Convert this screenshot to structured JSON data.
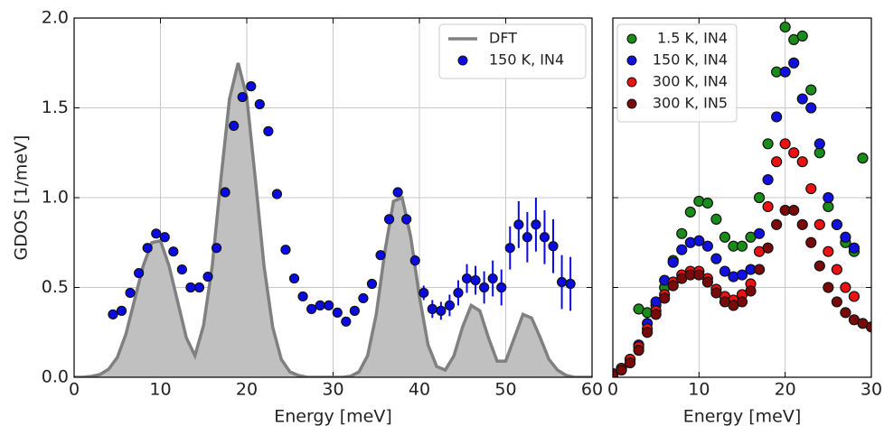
{
  "chart_data": [
    {
      "type": "scatter",
      "xlabel": "Energy [meV]",
      "ylabel": "GDOS [1/meV]",
      "xlim": [
        0,
        60
      ],
      "xticks": [
        0,
        10,
        20,
        30,
        40,
        50,
        60
      ],
      "ylim": [
        0,
        2.0
      ],
      "yticks": [
        {
          "value": 0,
          "label": "0.0"
        },
        0.5,
        {
          "value": 1,
          "label": "1.0"
        },
        1.5,
        {
          "value": 2,
          "label": "2.0"
        }
      ],
      "grid": true,
      "legend": "upper right",
      "series": [
        {
          "name": "DFT",
          "type": "line",
          "fill": true,
          "color": "#808080",
          "x": [
            0,
            1,
            2,
            3,
            4,
            5,
            6,
            7,
            8,
            9,
            10,
            11,
            12,
            13,
            14,
            15,
            16,
            17,
            18,
            19,
            20,
            21,
            22,
            23,
            24,
            25,
            26,
            27,
            28,
            29,
            30,
            31,
            32,
            33,
            34,
            35,
            36,
            37,
            38,
            39,
            40,
            41,
            42,
            43,
            44,
            45,
            46,
            47,
            48,
            49,
            50,
            51,
            52,
            53,
            54,
            55,
            56,
            57,
            58,
            59,
            60
          ],
          "values": [
            0,
            0,
            0.005,
            0.015,
            0.045,
            0.11,
            0.24,
            0.43,
            0.62,
            0.75,
            0.76,
            0.62,
            0.42,
            0.22,
            0.12,
            0.29,
            0.62,
            1.1,
            1.55,
            1.75,
            1.56,
            1.1,
            0.62,
            0.28,
            0.1,
            0.03,
            0.01,
            0,
            0,
            0,
            0,
            0,
            0.005,
            0.03,
            0.12,
            0.35,
            0.7,
            0.98,
            1.0,
            0.78,
            0.45,
            0.18,
            0.06,
            0.04,
            0.12,
            0.28,
            0.4,
            0.37,
            0.22,
            0.09,
            0.09,
            0.22,
            0.35,
            0.33,
            0.22,
            0.1,
            0.04,
            0.01,
            0,
            0,
            0
          ]
        },
        {
          "name": "150 K, IN4",
          "type": "scatter",
          "color": "#0a0ae6",
          "x": [
            4.5,
            5.5,
            6.5,
            7.5,
            8.5,
            9.5,
            10.5,
            11.5,
            12.5,
            13.5,
            14.5,
            15.5,
            16.5,
            17.5,
            18.5,
            19.5,
            20.5,
            21.5,
            22.5,
            23.5,
            24.5,
            25.5,
            26.5,
            27.5,
            28.5,
            29.5,
            30.5,
            31.5,
            32.5,
            33.5,
            34.5,
            35.5,
            36.5,
            37.5,
            38.5,
            39.5,
            40.5,
            41.5,
            42.5,
            43.5,
            44.5,
            45.5,
            46.5,
            47.5,
            48.5,
            49.5,
            50.5,
            51.5,
            52.5,
            53.5,
            54.5,
            55.5,
            56.5,
            57.5
          ],
          "values": [
            0.35,
            0.37,
            0.47,
            0.58,
            0.72,
            0.8,
            0.78,
            0.7,
            0.6,
            0.5,
            0.5,
            0.56,
            0.72,
            1.03,
            1.4,
            1.56,
            1.62,
            1.52,
            1.37,
            1.02,
            0.71,
            0.55,
            0.45,
            0.38,
            0.4,
            0.4,
            0.36,
            0.31,
            0.37,
            0.44,
            0.52,
            0.68,
            0.88,
            1.03,
            0.88,
            0.65,
            0.47,
            0.38,
            0.37,
            0.4,
            0.47,
            0.55,
            0.54,
            0.5,
            0.55,
            0.5,
            0.72,
            0.85,
            0.78,
            0.85,
            0.78,
            0.73,
            0.53,
            0.52
          ],
          "errors": [
            0.02,
            0.02,
            0.02,
            0.02,
            0.02,
            0.02,
            0.02,
            0.02,
            0.02,
            0.02,
            0.02,
            0.02,
            0.02,
            0.02,
            0.02,
            0.02,
            0.02,
            0.02,
            0.02,
            0.02,
            0.02,
            0.02,
            0.02,
            0.02,
            0.02,
            0.02,
            0.02,
            0.02,
            0.02,
            0.02,
            0.02,
            0.02,
            0.02,
            0.02,
            0.03,
            0.03,
            0.04,
            0.05,
            0.05,
            0.06,
            0.07,
            0.08,
            0.08,
            0.09,
            0.1,
            0.1,
            0.12,
            0.13,
            0.14,
            0.15,
            0.15,
            0.15,
            0.15,
            0.15
          ]
        }
      ]
    },
    {
      "type": "scatter",
      "xlabel": "Energy [meV]",
      "xlim": [
        0,
        30
      ],
      "xticks": [
        0,
        10,
        20,
        30
      ],
      "ylim": [
        0,
        2.0
      ],
      "yticks": [
        0,
        0.5,
        1,
        1.5,
        2
      ],
      "grid": true,
      "legend": "upper left",
      "series": [
        {
          "name": "1.5 K, IN4",
          "type": "scatter",
          "color": "#1a8c1a",
          "x": [
            3,
            4,
            5,
            6,
            7,
            8,
            9,
            10,
            11,
            12,
            13,
            14,
            15,
            16,
            17,
            18,
            19,
            20,
            21,
            22,
            23,
            24,
            25,
            26,
            27,
            28,
            29
          ],
          "values": [
            0.38,
            0.36,
            0.4,
            0.5,
            0.65,
            0.8,
            0.92,
            0.98,
            0.97,
            0.88,
            0.78,
            0.73,
            0.73,
            0.78,
            1.0,
            1.3,
            1.7,
            1.95,
            1.88,
            1.9,
            1.6,
            1.25,
            0.95,
            0.85,
            0.75,
            0.7,
            1.22
          ]
        },
        {
          "name": "150 K, IN4",
          "type": "scatter",
          "color": "#1010e0",
          "x": [
            0,
            1,
            2,
            3,
            4,
            5,
            6,
            7,
            8,
            9,
            10,
            11,
            12,
            13,
            14,
            15,
            16,
            17,
            18,
            19,
            20,
            21,
            22,
            23,
            24,
            25,
            26,
            27,
            28
          ],
          "values": [
            0.02,
            0.05,
            0.1,
            0.18,
            0.3,
            0.42,
            0.54,
            0.64,
            0.71,
            0.75,
            0.76,
            0.73,
            0.66,
            0.59,
            0.56,
            0.57,
            0.6,
            0.8,
            1.1,
            1.45,
            1.7,
            1.75,
            1.55,
            1.5,
            1.3,
            1.0,
            0.85,
            0.78,
            0.72
          ]
        },
        {
          "name": "300 K, IN4",
          "type": "scatter",
          "color": "#ee1111",
          "x": [
            0,
            1,
            2,
            3,
            4,
            5,
            6,
            7,
            8,
            9,
            10,
            11,
            12,
            13,
            14,
            15,
            16,
            17,
            18,
            19,
            20,
            21,
            22,
            23,
            24,
            25,
            26,
            27,
            28
          ],
          "values": [
            0.02,
            0.05,
            0.1,
            0.17,
            0.27,
            0.37,
            0.46,
            0.53,
            0.57,
            0.59,
            0.59,
            0.55,
            0.49,
            0.45,
            0.43,
            0.46,
            0.52,
            0.7,
            0.95,
            1.2,
            1.3,
            1.25,
            1.2,
            1.05,
            0.85,
            0.7,
            0.6,
            0.5,
            0.45
          ]
        },
        {
          "name": "300 K, IN5",
          "type": "scatter",
          "color": "#7a0a0a",
          "x": [
            0,
            1,
            2,
            3,
            4,
            5,
            6,
            7,
            8,
            9,
            10,
            11,
            12,
            13,
            14,
            15,
            16,
            17,
            18,
            19,
            20,
            21,
            22,
            23,
            24,
            25,
            26,
            27,
            28,
            29,
            30
          ],
          "values": [
            0.01,
            0.04,
            0.08,
            0.15,
            0.25,
            0.35,
            0.44,
            0.51,
            0.55,
            0.57,
            0.57,
            0.53,
            0.47,
            0.42,
            0.4,
            0.42,
            0.48,
            0.6,
            0.72,
            0.85,
            0.93,
            0.93,
            0.85,
            0.75,
            0.62,
            0.5,
            0.42,
            0.36,
            0.32,
            0.3,
            0.28
          ]
        }
      ]
    }
  ]
}
